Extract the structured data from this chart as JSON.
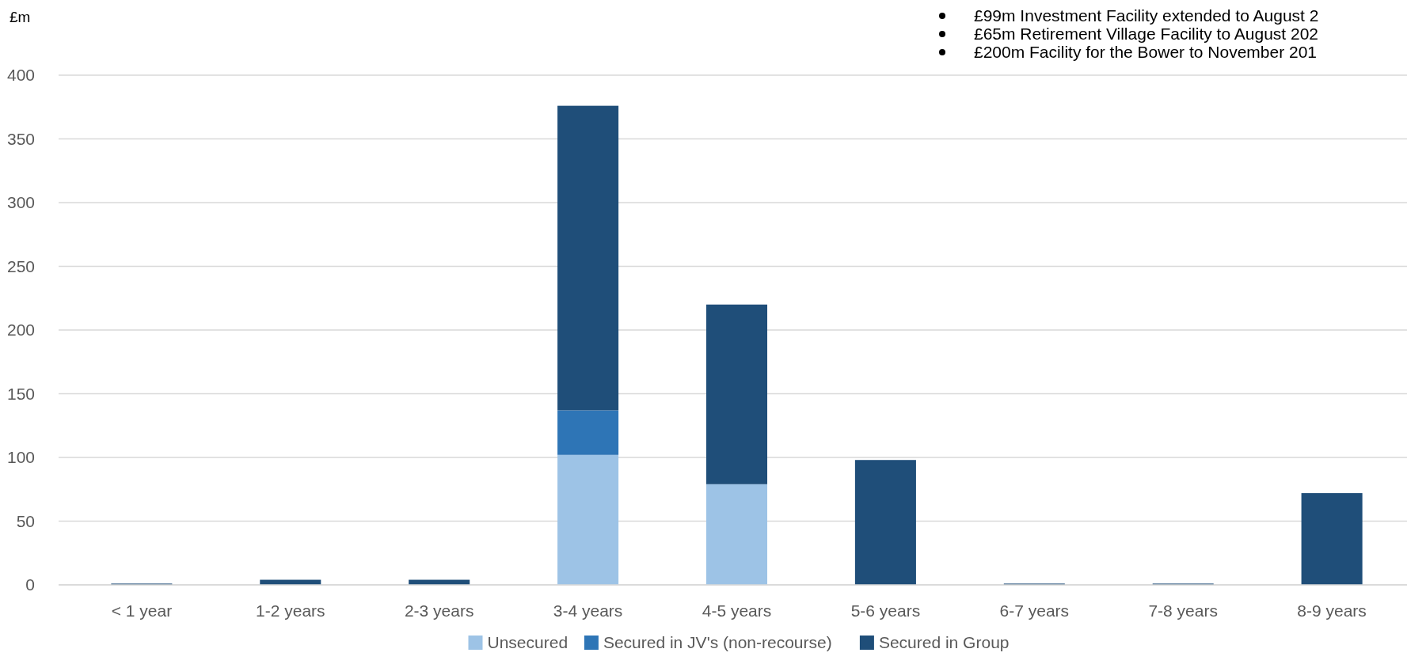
{
  "chart_data": {
    "type": "bar",
    "ylabel": "£m",
    "categories": [
      "< 1 year",
      "1-2 years",
      "2-3 years",
      "3-4 years",
      "4-5 years",
      "5-6 years",
      "6-7 years",
      "7-8 years",
      "8-9 years"
    ],
    "series": [
      {
        "name": "Unsecured",
        "color": "#9dc3e6",
        "values": [
          0,
          0,
          0,
          102,
          79,
          0,
          0,
          0,
          0
        ]
      },
      {
        "name": "Secured in JV's (non-recourse)",
        "color": "#2e75b6",
        "values": [
          0,
          0,
          0,
          35,
          0,
          0,
          0,
          0,
          0
        ]
      },
      {
        "name": "Secured in Group",
        "color": "#1f4e79",
        "values": [
          1,
          4,
          4,
          239,
          141,
          98,
          1,
          1,
          72
        ]
      }
    ],
    "stacked": true,
    "ylim": [
      0,
      400
    ],
    "yticks": [
      0,
      50,
      100,
      150,
      200,
      250,
      300,
      350,
      400
    ],
    "grid": "y",
    "legend": "bottom",
    "annotations": [
      "£99m Investment Facility extended to August 2",
      "£65m Retirement Village Facility to August 202",
      "£200m Facility for the Bower to November 201"
    ]
  }
}
